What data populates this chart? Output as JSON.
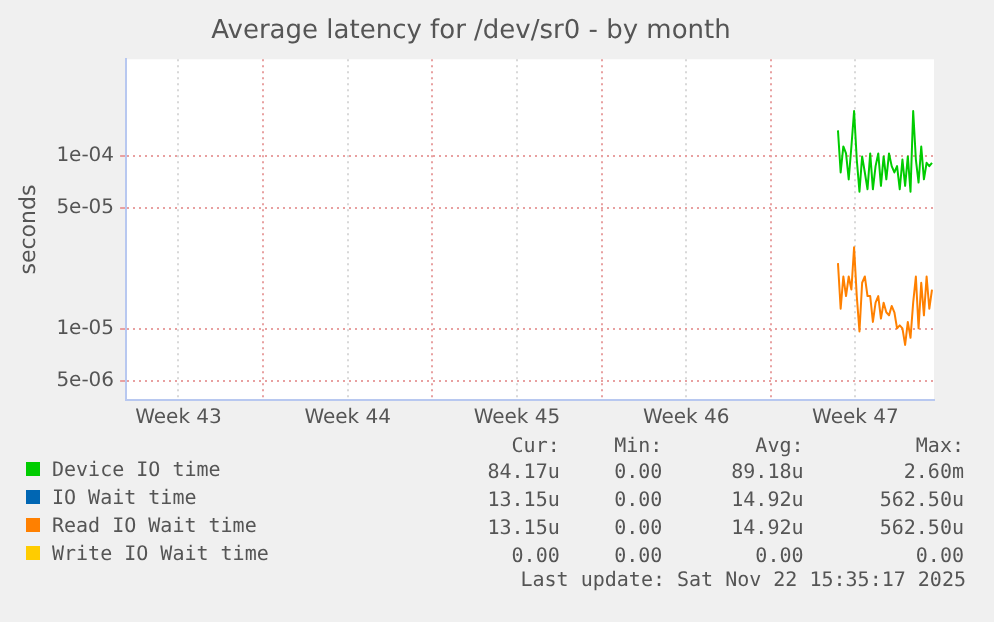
{
  "chart_data": {
    "type": "line",
    "title": "Average latency for /dev/sr0 - by month",
    "ylabel": "seconds",
    "log": "y",
    "grid": true,
    "legend": "bottom",
    "marker": "none",
    "line_style": "solid",
    "xlim": [
      "2025-10-21T08:00",
      "2025-11-23T18:00"
    ],
    "xticks": [
      {
        "value": "2025-10-23T12:00",
        "label": "Week 43"
      },
      {
        "value": "2025-10-27T00:00",
        "label": null
      },
      {
        "value": "2025-10-30T12:00",
        "label": "Week 44"
      },
      {
        "value": "2025-11-03T00:00",
        "label": null
      },
      {
        "value": "2025-11-06T12:00",
        "label": "Week 45"
      },
      {
        "value": "2025-11-10T00:00",
        "label": null
      },
      {
        "value": "2025-11-13T12:00",
        "label": "Week 46"
      },
      {
        "value": "2025-11-17T00:00",
        "label": null
      },
      {
        "value": "2025-11-20T12:00",
        "label": "Week 47"
      }
    ],
    "ylim": [
      3.9e-06,
      0.00036
    ],
    "yticks": [
      {
        "value": 5e-06,
        "label": "5e-06"
      },
      {
        "value": 1e-05,
        "label": "1e-05"
      },
      {
        "value": 5e-05,
        "label": "5e-05"
      },
      {
        "value": 0.0001,
        "label": "1e-04"
      }
    ],
    "x": [
      "2025-11-19T18:40",
      "2025-11-19T21:20",
      "2025-11-20T00:00",
      "2025-11-20T02:40",
      "2025-11-20T05:20",
      "2025-11-20T08:00",
      "2025-11-20T10:40",
      "2025-11-20T13:20",
      "2025-11-20T16:00",
      "2025-11-20T18:40",
      "2025-11-20T21:20",
      "2025-11-21T00:00",
      "2025-11-21T02:40",
      "2025-11-21T05:20",
      "2025-11-21T08:00",
      "2025-11-21T10:40",
      "2025-11-21T13:20",
      "2025-11-21T16:00",
      "2025-11-21T18:40",
      "2025-11-21T21:20",
      "2025-11-22T00:00",
      "2025-11-22T02:40",
      "2025-11-22T05:20",
      "2025-11-22T08:00",
      "2025-11-22T10:40",
      "2025-11-22T13:20",
      "2025-11-22T16:00",
      "2025-11-22T18:40",
      "2025-11-22T21:20",
      "2025-11-23T00:00",
      "2025-11-23T02:40",
      "2025-11-23T05:20",
      "2025-11-23T08:00",
      "2025-11-23T10:40",
      "2025-11-23T13:20",
      "2025-11-23T16:00"
    ],
    "series": [
      {
        "name": "Device IO time",
        "color": "#00cc00",
        "values": [
          0.00014,
          8e-05,
          0.000113,
          0.000103,
          7.3e-05,
          0.000113,
          0.000181,
          9.5e-05,
          6.2e-05,
          9.9e-05,
          8e-05,
          6.4e-05,
          0.000103,
          6.4e-05,
          8.7e-05,
          0.000103,
          6.7e-05,
          9.9e-05,
          7.3e-05,
          0.000103,
          8.7e-05,
          8e-05,
          8.7e-05,
          6.4e-05,
          9.5e-05,
          6.7e-05,
          9.9e-05,
          6.2e-05,
          0.000181,
          9.5e-05,
          7e-05,
          0.000113,
          7.3e-05,
          9.1e-05,
          8.7e-05,
          9.1e-05
        ]
      },
      {
        "name": "IO Wait time",
        "color": "#0066b3",
        "values": [
          null,
          null,
          null,
          null,
          null,
          null,
          null,
          null,
          null,
          null,
          null,
          null,
          null,
          null,
          null,
          null,
          null,
          null,
          null,
          null,
          null,
          null,
          null,
          null,
          null,
          null,
          null,
          null,
          null,
          null,
          null,
          null,
          null,
          null,
          null,
          null
        ]
      },
      {
        "name": "Read IO Wait time",
        "color": "#ff8000",
        "values": [
          2.4e-05,
          1.31e-05,
          2.01e-05,
          1.55e-05,
          2.01e-05,
          1.69e-05,
          2.96e-05,
          1.55e-05,
          9.7e-06,
          1.85e-05,
          2.01e-05,
          1.55e-05,
          1.55e-05,
          1.1e-05,
          1.42e-05,
          1.55e-05,
          1.15e-05,
          1.42e-05,
          1.25e-05,
          1.2e-05,
          1.36e-05,
          1.25e-05,
          1.01e-05,
          1.05e-05,
          1.01e-05,
          8.1e-06,
          1.1e-05,
          8.9e-06,
          1.42e-05,
          2.01e-05,
          1.01e-05,
          1.85e-05,
          1.2e-05,
          2.01e-05,
          1.31e-05,
          1.69e-05
        ]
      },
      {
        "name": "Write IO Wait time",
        "color": "#ffcc00",
        "values": [
          null,
          null,
          null,
          null,
          null,
          null,
          null,
          null,
          null,
          null,
          null,
          null,
          null,
          null,
          null,
          null,
          null,
          null,
          null,
          null,
          null,
          null,
          null,
          null,
          null,
          null,
          null,
          null,
          null,
          null,
          null,
          null,
          null,
          null,
          null,
          null
        ]
      }
    ],
    "annotations": [
      "Cur:",
      "Min:",
      "Avg:",
      "Max:",
      "84.17u",
      "0.00",
      "89.18u",
      "2.60m",
      "13.15u",
      "0.00",
      "14.92u",
      "562.50u",
      "13.15u",
      "0.00",
      "14.92u",
      "562.50u",
      "0.00",
      "0.00",
      "0.00",
      "0.00",
      "Last update: Sat Nov 22 15:35:17 2025"
    ]
  }
}
